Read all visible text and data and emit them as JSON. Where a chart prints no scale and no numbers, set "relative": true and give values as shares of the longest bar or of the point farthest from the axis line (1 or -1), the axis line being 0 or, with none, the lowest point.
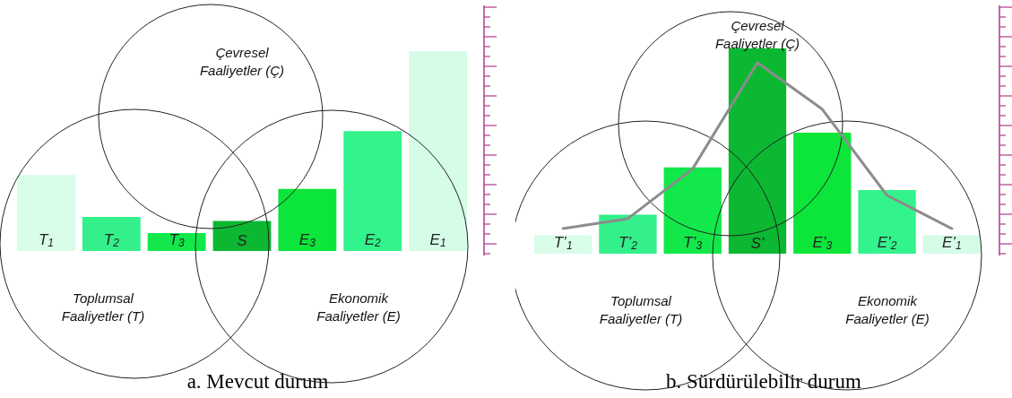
{
  "chart_data": [
    {
      "type": "bar",
      "title": "a. Mevcut durum",
      "relative": true,
      "categories": [
        "T$_{1}$",
        "T$_{2}$",
        "T$_{3}$",
        "S",
        "E$_{3}$",
        "E$_{2}$",
        "E$_{1}$"
      ],
      "series": [
        {
          "values": [
            0.38,
            0.17,
            0.09,
            0.15,
            0.31,
            0.6,
            1
          ],
          "colors": [
            "#d9fde8",
            "#33f08a",
            "#12e84a",
            "#0cb832",
            "#0ce63a",
            "#33f38c",
            "#d5fce6"
          ]
        }
      ],
      "annotations": [
        "Çevresel Faaliyetler (Ç)",
        "Toplumsal Faaliyetler (T)",
        "Ekonomik Faaliyetler (E)"
      ]
    },
    {
      "type": "bar",
      "title": "b. Sürdürülebilir durum",
      "relative": true,
      "categories": [
        "T’$_{1}$",
        "T’$_{2}$",
        "T’$_{3}$",
        "S’",
        "E’$_{3}$",
        "E’$_{2}$",
        "E’$_{1}$"
      ],
      "series": [
        {
          "values": [
            0.09,
            0.19,
            0.42,
            1,
            0.59,
            0.31,
            0.09
          ],
          "colors": [
            "#d9fde8",
            "#33f08a",
            "#12e84a",
            "#0cb832",
            "#0ce63a",
            "#33f38c",
            "#d5fce6"
          ]
        }
      ],
      "annotations": [
        "Çevresel Faaliyetler (Ç)",
        "Toplumsal Faaliyetler (T)",
        "Ekonomik Faaliyetler (E)"
      ]
    },
    {
      "type": "line",
      "relative": true,
      "marker": "none",
      "categories": [
        null,
        null,
        null,
        null,
        null,
        null,
        null
      ],
      "series": [
        {
          "color": "#8c8c8c",
          "values": [
            0,
            0.06,
            0.36,
            1,
            0.72,
            0.2,
            0
          ]
        }
      ]
    }
  ]
}
